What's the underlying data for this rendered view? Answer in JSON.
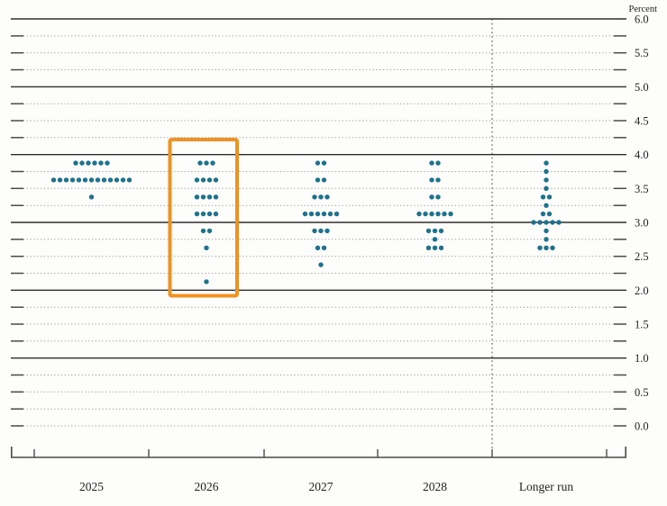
{
  "chart_data": {
    "type": "scatter",
    "subtype": "fomc-dot-plot",
    "y_axis_unit_label": "Percent",
    "ylim": [
      0.0,
      6.0
    ],
    "y_label_step": 0.5,
    "y_grid_step": 0.25,
    "y_axis_labels": [
      "6.0",
      "5.5",
      "5.0",
      "4.5",
      "4.0",
      "3.5",
      "3.0",
      "2.5",
      "2.0",
      "1.5",
      "1.0",
      "0.5",
      "0.0"
    ],
    "categories": [
      "2025",
      "2026",
      "2027",
      "2028",
      "Longer run"
    ],
    "columns": [
      {
        "label": "2025",
        "highlighted": false,
        "dots": [
          {
            "rate": 3.875,
            "count": 6
          },
          {
            "rate": 3.625,
            "count": 13
          },
          {
            "rate": 3.375,
            "count": 1
          }
        ]
      },
      {
        "label": "2026",
        "highlighted": true,
        "dots": [
          {
            "rate": 3.875,
            "count": 3
          },
          {
            "rate": 3.625,
            "count": 4
          },
          {
            "rate": 3.375,
            "count": 4
          },
          {
            "rate": 3.125,
            "count": 4
          },
          {
            "rate": 2.875,
            "count": 2
          },
          {
            "rate": 2.625,
            "count": 1
          },
          {
            "rate": 2.125,
            "count": 1
          }
        ]
      },
      {
        "label": "2027",
        "highlighted": false,
        "dots": [
          {
            "rate": 3.875,
            "count": 2
          },
          {
            "rate": 3.625,
            "count": 2
          },
          {
            "rate": 3.375,
            "count": 3
          },
          {
            "rate": 3.125,
            "count": 6
          },
          {
            "rate": 2.875,
            "count": 3
          },
          {
            "rate": 2.625,
            "count": 2
          },
          {
            "rate": 2.375,
            "count": 1
          }
        ]
      },
      {
        "label": "2028",
        "highlighted": false,
        "dots": [
          {
            "rate": 3.875,
            "count": 2
          },
          {
            "rate": 3.625,
            "count": 2
          },
          {
            "rate": 3.375,
            "count": 2
          },
          {
            "rate": 3.125,
            "count": 6
          },
          {
            "rate": 2.875,
            "count": 3
          },
          {
            "rate": 2.75,
            "count": 1
          },
          {
            "rate": 2.625,
            "count": 3
          }
        ]
      },
      {
        "label": "Longer run",
        "highlighted": false,
        "dots": [
          {
            "rate": 3.875,
            "count": 1
          },
          {
            "rate": 3.75,
            "count": 1
          },
          {
            "rate": 3.625,
            "count": 1
          },
          {
            "rate": 3.5,
            "count": 1
          },
          {
            "rate": 3.375,
            "count": 2
          },
          {
            "rate": 3.25,
            "count": 1
          },
          {
            "rate": 3.125,
            "count": 2
          },
          {
            "rate": 3.0,
            "count": 5
          },
          {
            "rate": 2.875,
            "count": 1
          },
          {
            "rate": 2.75,
            "count": 1
          },
          {
            "rate": 2.625,
            "count": 3
          }
        ]
      }
    ],
    "legend_position": "none",
    "grid": "on",
    "colors": {
      "dot": "#1d7290",
      "highlight_box": "#f19121",
      "solid_gridline": "#2e2e2e",
      "dotted_gridline": "#9a9a9a",
      "axis": "#4a4a4a",
      "label_text": "#222222"
    },
    "annotations": [
      {
        "type": "rect",
        "target_category": "2026",
        "color": "#f19121"
      }
    ]
  }
}
